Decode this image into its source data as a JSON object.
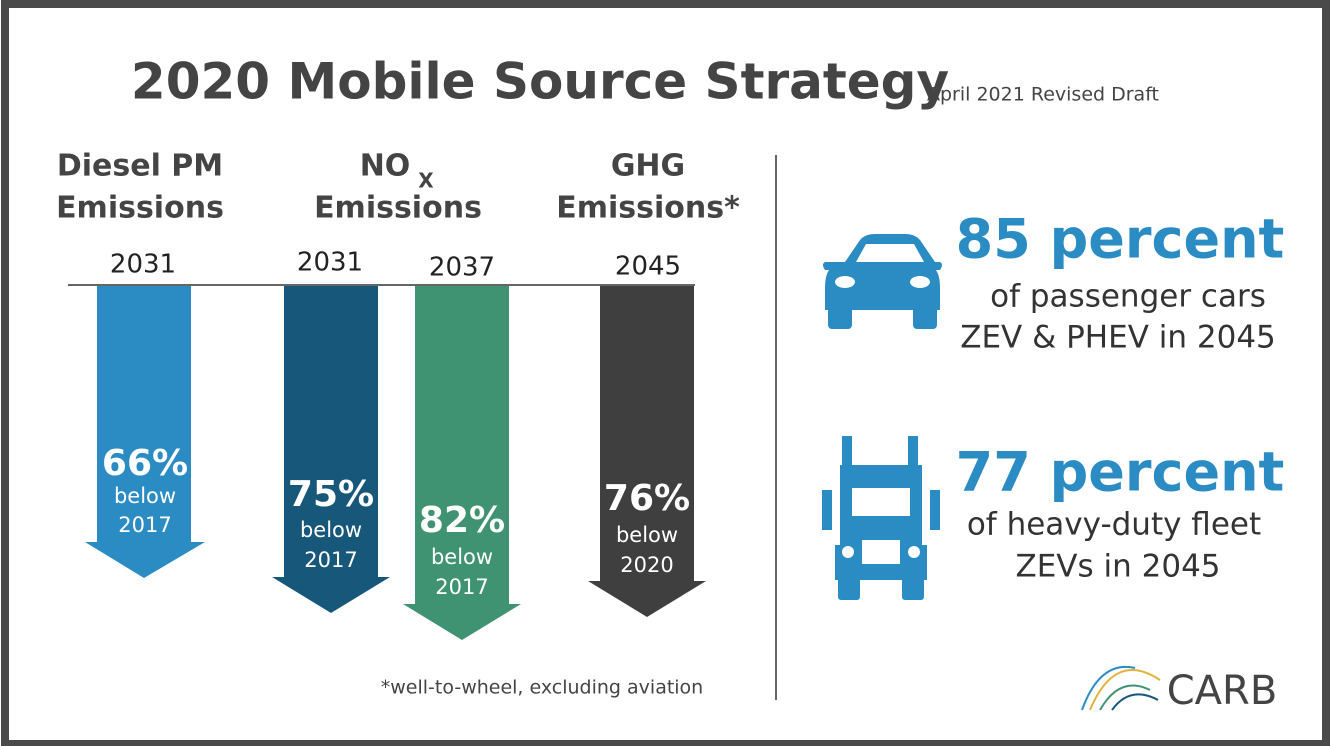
{
  "header": {
    "title": "2020 Mobile Source Strategy",
    "subtitle": "April 2021 Revised Draft"
  },
  "columns": [
    {
      "heading": [
        "Diesel PM",
        "Emissions"
      ]
    },
    {
      "heading": [
        "NO",
        "X",
        "Emissions"
      ]
    },
    {
      "heading": [
        "GHG",
        "Emissions*"
      ]
    }
  ],
  "arrows": [
    {
      "year": "2031",
      "percent": "66%",
      "below": "below",
      "base_year": "2017"
    },
    {
      "year": "2031",
      "percent": "75%",
      "below": "below",
      "base_year": "2017"
    },
    {
      "year": "2037",
      "percent": "82%",
      "below": "below",
      "base_year": "2017"
    },
    {
      "year": "2045",
      "percent": "76%",
      "below": "below",
      "base_year": "2020"
    }
  ],
  "footnote": "*well-to-wheel, excluding aviation",
  "stats": [
    {
      "headline": "85 percent",
      "lines": [
        "of passenger cars",
        "ZEV & PHEV in 2045"
      ]
    },
    {
      "headline": "77 percent",
      "lines": [
        "of heavy-duty fleet",
        "ZEVs in 2045"
      ]
    }
  ],
  "logo": "CARB"
}
